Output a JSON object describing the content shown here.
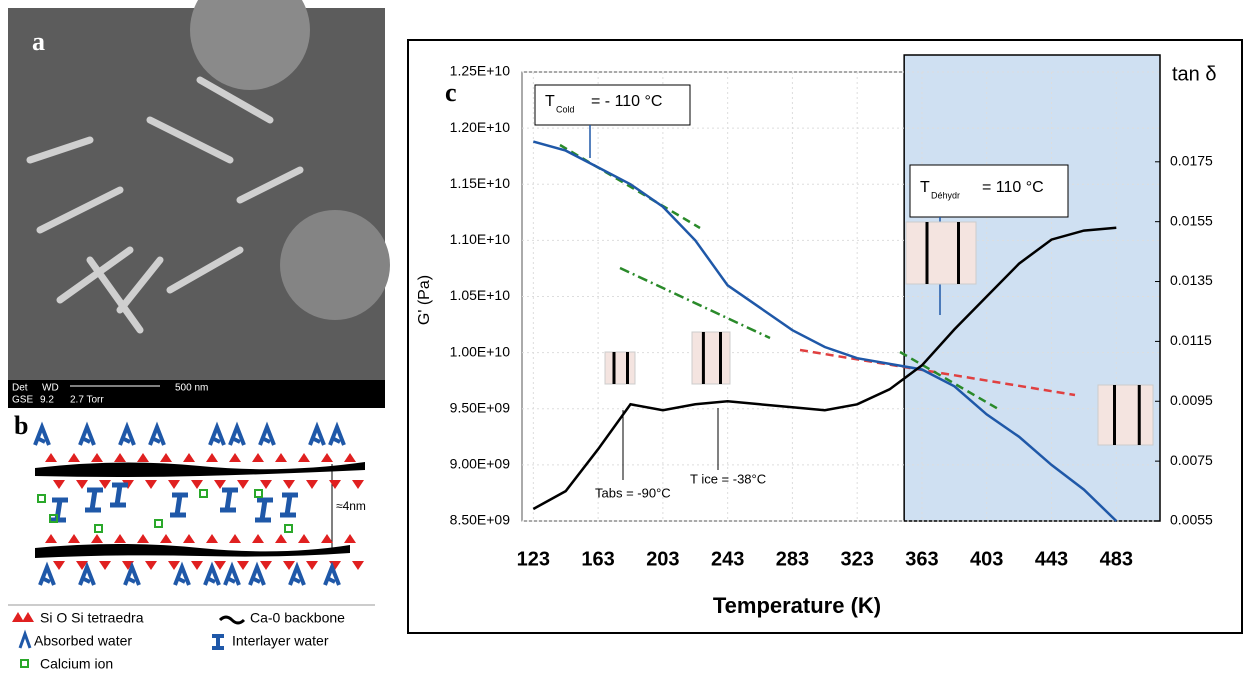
{
  "panel_a": {
    "label": "a",
    "info": [
      "Det",
      "WD",
      "GSE",
      "9.2",
      "2.7 Torr"
    ],
    "scale_bar": "500 nm"
  },
  "panel_b": {
    "label": "b",
    "spacing": "≈4nm",
    "legend": [
      "Si O Si tetraedra",
      "Ca-0 backbone",
      "Absorbed water",
      "Interlayer water",
      "Calcium ion"
    ]
  },
  "chart_data": {
    "type": "line",
    "panel_label": "c",
    "x_label": "Temperature (K)",
    "y_label": "G' (Pa)",
    "y2_label": "tan δ",
    "x": [
      123,
      143,
      163,
      183,
      203,
      223,
      243,
      263,
      283,
      303,
      323,
      343,
      363,
      383,
      403,
      423,
      443,
      463,
      483
    ],
    "series": [
      {
        "color": "#1f58a8",
        "values": [
          11880000000,
          11800000000,
          11650000000,
          11500000000,
          11300000000,
          11000000000,
          10600000000,
          10400000000,
          10200000000,
          10050000000,
          9950000000,
          9900000000,
          9850000000,
          9700000000,
          9450000000,
          9250000000,
          9000000000,
          8780000000,
          8500000000
        ]
      },
      {
        "color": "#000000",
        "axis": "y2",
        "values": [
          0.0059,
          0.0065,
          0.0079,
          0.0094,
          0.0092,
          0.0094,
          0.0095,
          0.0094,
          0.0093,
          0.0092,
          0.0094,
          0.0099,
          0.0107,
          0.0119,
          0.013,
          0.0141,
          0.0149,
          0.0152,
          0.0153
        ]
      }
    ],
    "xlim": [
      116,
      510
    ],
    "xticks": [
      123,
      163,
      203,
      243,
      283,
      323,
      363,
      403,
      443,
      483
    ],
    "ylim": [
      8500000000,
      12500000000
    ],
    "yticks": [
      {
        "value": 8500000000,
        "label": "8.50E+09"
      },
      {
        "value": 9000000000,
        "label": "9.00E+09"
      },
      {
        "value": 9500000000,
        "label": "9.50E+09"
      },
      {
        "value": 10000000000,
        "label": "1.00E+10"
      },
      {
        "value": 10500000000,
        "label": "1.05E+10"
      },
      {
        "value": 11000000000,
        "label": "1.10E+10"
      },
      {
        "value": 11500000000,
        "label": "1.15E+10"
      },
      {
        "value": 12000000000,
        "label": "1.20E+10"
      },
      {
        "value": 12500000000,
        "label": "1.25E+10"
      }
    ],
    "y2lim": [
      0.0055,
      0.0205
    ],
    "y2ticks": [
      0.0055,
      0.0075,
      0.0095,
      0.0115,
      0.0135,
      0.0155,
      0.0175
    ],
    "grid": true,
    "shaded_region": [
      352,
      510
    ],
    "shaded_color": "#cfe0f2",
    "temperature_labels": [
      {
        "symbol": "T",
        "subscript": "Cold",
        "text": "= - 110 °C"
      },
      {
        "symbol": "T",
        "subscript": "Déhydr",
        "text": "= 110 °C"
      }
    ],
    "annotations": [
      "Tabs = -90°C",
      "T ice = -38°C"
    ]
  }
}
